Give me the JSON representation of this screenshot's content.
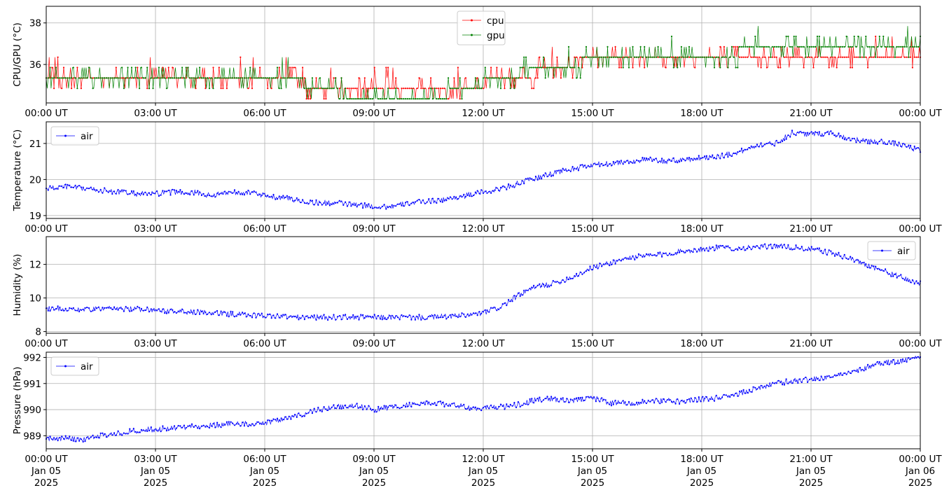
{
  "chart_data": [
    {
      "type": "line",
      "ylabel": "CPU/GPU (°C)",
      "xlabel": "",
      "xlim": [
        "2025-01-05 00:00",
        "2025-01-06 00:00"
      ],
      "ylim": [
        34.15,
        38.8
      ],
      "yticks": [
        36,
        38
      ],
      "xtick_labels": [
        "00:00 UT",
        "03:00 UT",
        "06:00 UT",
        "09:00 UT",
        "12:00 UT",
        "15:00 UT",
        "18:00 UT",
        "21:00 UT",
        "00:00 UT"
      ],
      "grid": true,
      "legend_position": "upper center",
      "series": [
        {
          "name": "cpu",
          "color": "#ff0000",
          "hours": [
            0,
            0.5,
            1,
            1.5,
            2,
            2.5,
            3,
            3.5,
            4,
            4.5,
            5,
            5.5,
            6,
            6.5,
            7,
            7.5,
            8,
            8.5,
            9,
            9.5,
            10,
            10.5,
            11,
            11.5,
            12,
            12.5,
            13,
            13.5,
            14,
            14.5,
            15,
            15.5,
            16,
            16.5,
            17,
            17.5,
            18,
            18.5,
            19,
            19.5,
            20,
            20.5,
            21,
            21.5,
            22,
            22.5,
            23,
            23.5,
            24
          ],
          "values": [
            35.4,
            35.4,
            35.4,
            35.4,
            35.4,
            35.4,
            35.4,
            35.4,
            35.4,
            35.4,
            35.4,
            35.4,
            35.4,
            35.4,
            35.2,
            34.8,
            34.8,
            34.8,
            34.8,
            34.8,
            34.8,
            34.8,
            34.8,
            34.8,
            35.0,
            35.4,
            35.4,
            35.6,
            35.9,
            36.1,
            36.4,
            36.4,
            36.4,
            36.4,
            36.4,
            36.4,
            36.4,
            36.4,
            36.4,
            36.4,
            36.4,
            36.4,
            36.4,
            36.4,
            36.4,
            36.4,
            36.4,
            36.4,
            36.4
          ]
        },
        {
          "name": "gpu",
          "color": "#008000",
          "hours": [
            0,
            0.5,
            1,
            1.5,
            2,
            2.5,
            3,
            3.5,
            4,
            4.5,
            5,
            5.5,
            6,
            6.5,
            7,
            7.5,
            8,
            8.5,
            9,
            9.5,
            10,
            10.5,
            11,
            11.5,
            12,
            12.5,
            13,
            13.5,
            14,
            14.5,
            15,
            15.5,
            16,
            16.5,
            17,
            17.5,
            18,
            18.5,
            19,
            19.5,
            20,
            20.5,
            21,
            21.5,
            22,
            22.5,
            23,
            23.5,
            24
          ],
          "values": [
            35.4,
            35.4,
            35.4,
            35.4,
            35.4,
            35.4,
            35.4,
            35.4,
            35.4,
            35.4,
            35.4,
            35.4,
            35.4,
            35.4,
            35.1,
            34.8,
            34.6,
            34.4,
            34.4,
            34.4,
            34.4,
            34.5,
            34.6,
            34.8,
            35.1,
            35.4,
            35.6,
            35.9,
            35.9,
            35.9,
            36.4,
            36.4,
            36.4,
            36.4,
            36.5,
            36.5,
            36.5,
            36.5,
            36.6,
            36.7,
            36.8,
            36.8,
            36.9,
            36.9,
            36.9,
            36.9,
            36.9,
            36.9,
            36.9
          ]
        }
      ]
    },
    {
      "type": "line",
      "ylabel": "Temperature (°C)",
      "xlabel": "",
      "xlim": [
        "2025-01-05 00:00",
        "2025-01-06 00:00"
      ],
      "ylim": [
        18.92,
        21.6
      ],
      "yticks": [
        19,
        20,
        21
      ],
      "xtick_labels": [
        "00:00 UT",
        "03:00 UT",
        "06:00 UT",
        "09:00 UT",
        "12:00 UT",
        "15:00 UT",
        "18:00 UT",
        "21:00 UT",
        "00:00 UT"
      ],
      "grid": true,
      "legend_position": "upper left",
      "series": [
        {
          "name": "air",
          "color": "#0000ff",
          "hours": [
            0,
            0.5,
            1,
            1.5,
            2,
            2.5,
            3,
            3.5,
            4,
            4.5,
            5,
            5.5,
            6,
            6.5,
            7,
            7.5,
            8,
            8.5,
            9,
            9.5,
            10,
            10.5,
            11,
            11.5,
            12,
            12.5,
            13,
            13.5,
            14,
            14.5,
            15,
            15.5,
            16,
            16.5,
            17,
            17.5,
            18,
            18.5,
            19,
            19.5,
            20,
            20.5,
            21,
            21.5,
            22,
            22.5,
            23,
            23.5,
            24
          ],
          "values": [
            19.75,
            19.8,
            19.75,
            19.7,
            19.65,
            19.6,
            19.6,
            19.65,
            19.65,
            19.55,
            19.65,
            19.65,
            19.55,
            19.5,
            19.4,
            19.35,
            19.35,
            19.3,
            19.25,
            19.25,
            19.35,
            19.4,
            19.45,
            19.55,
            19.65,
            19.75,
            19.9,
            20.05,
            20.2,
            20.3,
            20.4,
            20.45,
            20.5,
            20.55,
            20.5,
            20.55,
            20.6,
            20.65,
            20.75,
            20.95,
            21.0,
            21.3,
            21.25,
            21.3,
            21.15,
            21.05,
            21.05,
            20.95,
            20.8
          ]
        }
      ]
    },
    {
      "type": "line",
      "ylabel": "Humidity (%)",
      "xlabel": "",
      "xlim": [
        "2025-01-05 00:00",
        "2025-01-06 00:00"
      ],
      "ylim": [
        7.9,
        13.65
      ],
      "yticks": [
        8,
        10,
        12
      ],
      "xtick_labels": [
        "00:00 UT",
        "03:00 UT",
        "06:00 UT",
        "09:00 UT",
        "12:00 UT",
        "15:00 UT",
        "18:00 UT",
        "21:00 UT",
        "00:00 UT"
      ],
      "grid": true,
      "legend_position": "upper right",
      "series": [
        {
          "name": "air",
          "color": "#0000ff",
          "hours": [
            0,
            0.5,
            1,
            1.5,
            2,
            2.5,
            3,
            3.5,
            4,
            4.5,
            5,
            5.5,
            6,
            6.5,
            7,
            7.5,
            8,
            8.5,
            9,
            9.5,
            10,
            10.5,
            11,
            11.5,
            12,
            12.5,
            13,
            13.5,
            14,
            14.5,
            15,
            15.5,
            16,
            16.5,
            17,
            17.5,
            18,
            18.5,
            19,
            19.5,
            20,
            20.5,
            21,
            21.5,
            22,
            22.5,
            23,
            23.5,
            24
          ],
          "values": [
            9.4,
            9.35,
            9.3,
            9.35,
            9.35,
            9.35,
            9.3,
            9.2,
            9.15,
            9.1,
            9.05,
            9.0,
            8.95,
            8.9,
            8.85,
            8.85,
            8.85,
            8.85,
            8.85,
            8.85,
            8.85,
            8.85,
            8.9,
            8.95,
            9.1,
            9.5,
            10.2,
            10.7,
            10.9,
            11.3,
            11.8,
            12.1,
            12.4,
            12.5,
            12.6,
            12.8,
            12.9,
            13.0,
            12.95,
            13.0,
            13.1,
            13.0,
            12.9,
            12.7,
            12.4,
            12.0,
            11.6,
            11.2,
            10.85
          ]
        }
      ]
    },
    {
      "type": "line",
      "ylabel": "Pressure (hPa)",
      "xlabel": "",
      "xlim": [
        "2025-01-05 00:00",
        "2025-01-06 00:00"
      ],
      "ylim": [
        988.5,
        992.2
      ],
      "yticks": [
        989,
        990,
        991,
        992
      ],
      "xtick_labels": [
        "00:00 UT",
        "03:00 UT",
        "06:00 UT",
        "09:00 UT",
        "12:00 UT",
        "15:00 UT",
        "18:00 UT",
        "21:00 UT",
        "00:00 UT"
      ],
      "xtick_date_labels": [
        "Jan 05",
        "Jan 05",
        "Jan 05",
        "Jan 05",
        "Jan 05",
        "Jan 05",
        "Jan 05",
        "Jan 05",
        "Jan 06"
      ],
      "xtick_year_labels": [
        "2025",
        "2025",
        "2025",
        "2025",
        "2025",
        "2025",
        "2025",
        "2025",
        "2025"
      ],
      "grid": true,
      "legend_position": "upper left",
      "series": [
        {
          "name": "air",
          "color": "#0000ff",
          "hours": [
            0,
            0.5,
            1,
            1.5,
            2,
            2.5,
            3,
            3.5,
            4,
            4.5,
            5,
            5.5,
            6,
            6.5,
            7,
            7.5,
            8,
            8.5,
            9,
            9.5,
            10,
            10.5,
            11,
            11.5,
            12,
            12.5,
            13,
            13.5,
            14,
            14.5,
            15,
            15.5,
            16,
            16.5,
            17,
            17.5,
            18,
            18.5,
            19,
            19.5,
            20,
            20.5,
            21,
            21.5,
            22,
            22.5,
            23,
            23.5,
            24
          ],
          "values": [
            988.9,
            988.9,
            988.85,
            989.0,
            989.1,
            989.2,
            989.25,
            989.3,
            989.35,
            989.4,
            989.45,
            989.45,
            989.5,
            989.65,
            989.8,
            990.0,
            990.1,
            990.15,
            990.0,
            990.1,
            990.2,
            990.25,
            990.2,
            990.1,
            990.05,
            990.1,
            990.2,
            990.4,
            990.4,
            990.35,
            990.45,
            990.25,
            990.25,
            990.3,
            990.35,
            990.3,
            990.4,
            990.45,
            990.6,
            990.8,
            991.0,
            991.1,
            991.15,
            991.25,
            991.4,
            991.6,
            991.8,
            991.85,
            992.05
          ]
        }
      ]
    }
  ]
}
